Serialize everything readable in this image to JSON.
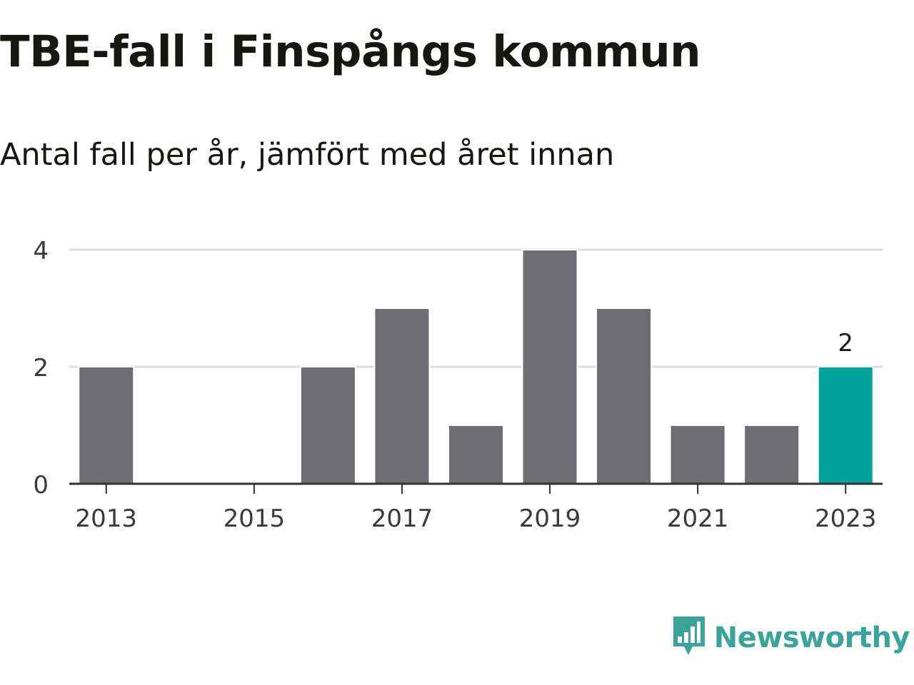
{
  "title": "TBE-fall i Finspångs kommun",
  "subtitle": "Antal fall per år, jämfört med året innan",
  "brand": {
    "name": "Newsworthy",
    "icon": "bar-chart-speech-bubble-logo",
    "color": "#3aa39a"
  },
  "chart_data": {
    "type": "bar",
    "categories": [
      2013,
      2014,
      2015,
      2016,
      2017,
      2018,
      2019,
      2020,
      2021,
      2022,
      2023
    ],
    "values": [
      2,
      0,
      0,
      2,
      3,
      1,
      4,
      3,
      1,
      1,
      2
    ],
    "x_tick_labels": [
      "2013",
      "2015",
      "2017",
      "2019",
      "2021",
      "2023"
    ],
    "y_ticks": [
      0,
      2,
      4
    ],
    "ylim": [
      0,
      4
    ],
    "grid": true,
    "highlight": {
      "category": 2023,
      "label": "2"
    },
    "colors": {
      "bar": "#6e6d72",
      "highlight": "#00a49a",
      "grid": "#dcdcdc",
      "axis": "#333333"
    }
  }
}
